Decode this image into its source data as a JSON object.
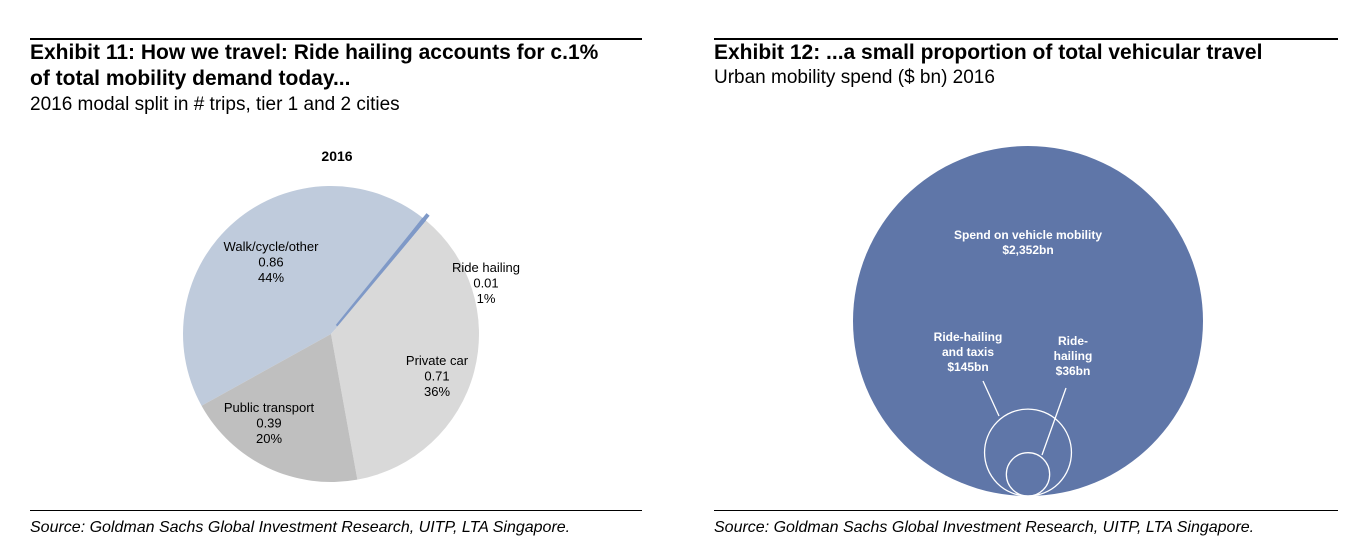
{
  "exhibit11": {
    "title_line1": "Exhibit 11: How we travel: Ride hailing accounts for c.1%",
    "title_line2": "of total mobility demand today...",
    "subtitle": "2016 modal split in # trips, tier 1 and 2 cities",
    "source": "Source: Goldman Sachs Global Investment Research, UITP, LTA Singapore."
  },
  "exhibit12": {
    "title": "Exhibit 12: ...a small proportion of total vehicular travel",
    "subtitle": "Urban mobility spend ($ bn) 2016",
    "source": "Source: Goldman Sachs Global Investment Research, UITP, LTA Singapore."
  },
  "chart_data": [
    {
      "type": "pie",
      "title": "2016",
      "unit": "trips",
      "slices": [
        {
          "label": "Walk/cycle/other",
          "value": 0.86,
          "pct": "44%",
          "value_label": "0.86",
          "color": "#bfcbdc"
        },
        {
          "label": "Ride hailing",
          "value": 0.01,
          "pct": "1%",
          "value_label": "0.01",
          "color": "#7f99c7"
        },
        {
          "label": "Private car",
          "value": 0.71,
          "pct": "36%",
          "value_label": "0.71",
          "color": "#d9d9d9"
        },
        {
          "label": "Public transport",
          "value": 0.39,
          "pct": "20%",
          "value_label": "0.39",
          "color": "#bfbfbf"
        }
      ]
    },
    {
      "type": "bubble",
      "title": "Urban mobility spend ($ bn) 2016",
      "circles": [
        {
          "label": "Spend on vehicle mobility",
          "value": 2352,
          "value_label": "$2,352bn",
          "color": "#5f76a8"
        },
        {
          "label": "Ride-hailing and taxis",
          "value": 145,
          "value_label": "$145bn",
          "color": "none"
        },
        {
          "label": "Ride-hailing",
          "value": 36,
          "value_label": "$36bn",
          "color": "none"
        }
      ]
    }
  ]
}
